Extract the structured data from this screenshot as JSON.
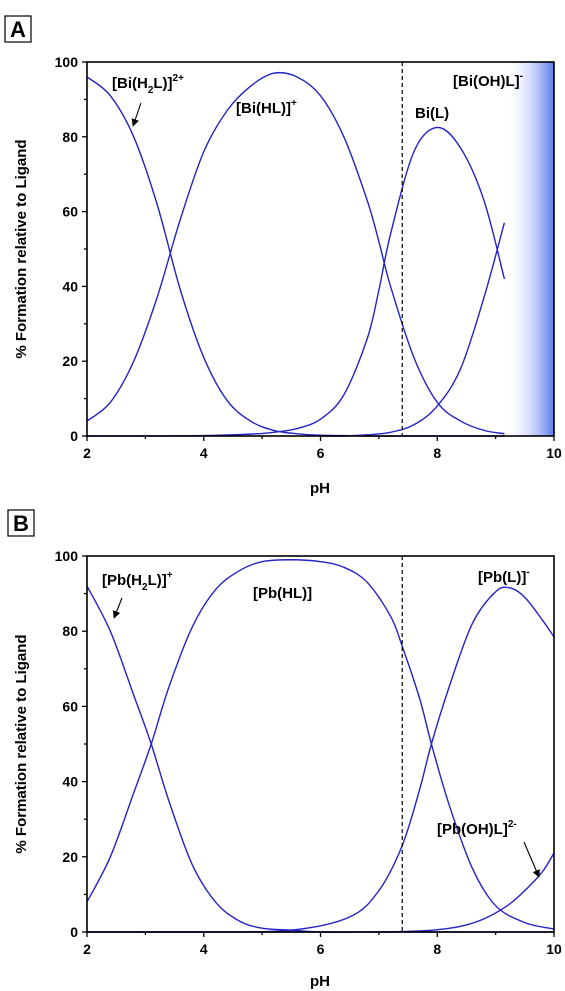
{
  "chart_data": [
    {
      "panel": "A",
      "type": "line",
      "xlabel": "pH",
      "ylabel": "% Formation relative to Ligand",
      "xlim": [
        2,
        10
      ],
      "ylim": [
        0,
        100
      ],
      "xticks": [
        "2",
        "4",
        "6",
        "8",
        "10"
      ],
      "yticks": [
        "0",
        "20",
        "40",
        "60",
        "80",
        "100"
      ],
      "reference_line_ph": 7.4,
      "shaded_region": {
        "from_ph": 9.15,
        "to_ph": 10,
        "color": "#5a78f0"
      },
      "line_color": "#2323c8",
      "series": [
        {
          "x": [
            2.0,
            2.4,
            2.8,
            3.2,
            3.6,
            4.0,
            4.4,
            4.8,
            5.2,
            5.6,
            6.0,
            6.4,
            6.8,
            7.2,
            7.6,
            8.0,
            8.4,
            8.8,
            9.15
          ],
          "y": [
            96,
            91,
            80,
            62,
            39,
            21,
            9.5,
            4,
            1.5,
            0.6,
            0.2,
            0.1,
            0,
            0,
            0,
            0,
            0,
            0,
            0
          ]
        },
        {
          "x": [
            2.0,
            2.4,
            2.8,
            3.2,
            3.6,
            4.0,
            4.4,
            4.8,
            5.2,
            5.6,
            6.0,
            6.4,
            6.8,
            7.0,
            7.2,
            7.6,
            8.0,
            8.4,
            8.8,
            9.15
          ],
          "y": [
            4,
            9,
            20,
            37,
            58,
            76,
            87,
            93.5,
            97,
            96,
            91,
            80,
            63,
            52,
            40,
            21,
            9,
            4,
            1.5,
            0.6
          ]
        },
        {
          "x": [
            2.0,
            3.0,
            4.0,
            4.8,
            5.2,
            5.6,
            6.0,
            6.4,
            6.8,
            7.0,
            7.2,
            7.6,
            8.0,
            8.4,
            8.8,
            9.15
          ],
          "y": [
            0,
            0,
            0.1,
            0.5,
            1,
            2,
            4.5,
            11,
            26,
            39,
            54,
            76,
            82.5,
            77,
            63,
            42
          ]
        },
        {
          "x": [
            6.0,
            6.4,
            6.8,
            7.2,
            7.6,
            8.0,
            8.4,
            8.8,
            9.15
          ],
          "y": [
            0,
            0,
            0.3,
            1,
            3,
            8,
            18,
            37,
            57
          ]
        }
      ],
      "annotations": [
        {
          "text": "[Bi(H",
          "sub": "2",
          "text2": "L)]",
          "sup": "2+"
        },
        {
          "text": "[Bi(HL)]",
          "sup": "+"
        },
        {
          "text": "Bi(L)"
        },
        {
          "text": "[Bi(OH)L]",
          "sup": "-"
        }
      ]
    },
    {
      "panel": "B",
      "type": "line",
      "xlabel": "pH",
      "ylabel": "% Formation relative to Ligand",
      "xlim": [
        2,
        10
      ],
      "ylim": [
        0,
        100
      ],
      "xticks": [
        "2",
        "4",
        "6",
        "8",
        "10"
      ],
      "yticks": [
        "0",
        "20",
        "40",
        "60",
        "80",
        "100"
      ],
      "reference_line_ph": 7.4,
      "line_color": "#2323c8",
      "series": [
        {
          "x": [
            2.0,
            2.4,
            2.8,
            3.1,
            3.4,
            3.8,
            4.2,
            4.6,
            5.0,
            5.5,
            6.0,
            7.0,
            8.0,
            9.0,
            10.0
          ],
          "y": [
            92,
            80,
            63,
            50,
            35,
            18,
            8,
            3,
            1,
            0.5,
            0,
            0,
            0,
            0,
            0
          ]
        },
        {
          "x": [
            2.0,
            2.4,
            2.8,
            3.1,
            3.4,
            3.8,
            4.2,
            4.6,
            5.0,
            5.5,
            6.0,
            6.4,
            6.8,
            7.2,
            7.4,
            7.7,
            7.9,
            8.2,
            8.6,
            9.0,
            9.5,
            10.0
          ],
          "y": [
            8,
            20,
            37,
            50,
            65,
            81,
            91,
            96,
            98.5,
            99,
            98.5,
            97,
            93,
            84,
            76,
            62,
            50,
            34,
            17,
            7,
            2.5,
            0.8
          ]
        },
        {
          "x": [
            2.0,
            4.0,
            5.5,
            6.5,
            7.0,
            7.4,
            7.7,
            7.9,
            8.2,
            8.6,
            9.0,
            9.25,
            9.5,
            9.8,
            10.0
          ],
          "y": [
            0,
            0,
            0.5,
            4,
            11,
            23,
            38,
            50,
            65,
            82,
            90.5,
            91.5,
            89,
            83,
            78.5
          ]
        },
        {
          "x": [
            2.0,
            6.0,
            7.0,
            7.6,
            8.0,
            8.4,
            8.8,
            9.2,
            9.5,
            9.8,
            10.0
          ],
          "y": [
            0,
            0,
            0,
            0.2,
            0.6,
            1.5,
            3.5,
            7,
            11,
            16,
            21
          ]
        }
      ],
      "annotations": [
        {
          "text": "[Pb(H",
          "sub": "2",
          "text2": "L)]",
          "sup": "+"
        },
        {
          "text": "[Pb(HL)]"
        },
        {
          "text": "[Pb(L)]",
          "sup": "-"
        },
        {
          "text": "[Pb(OH)L]",
          "sup": "2-"
        }
      ]
    }
  ]
}
